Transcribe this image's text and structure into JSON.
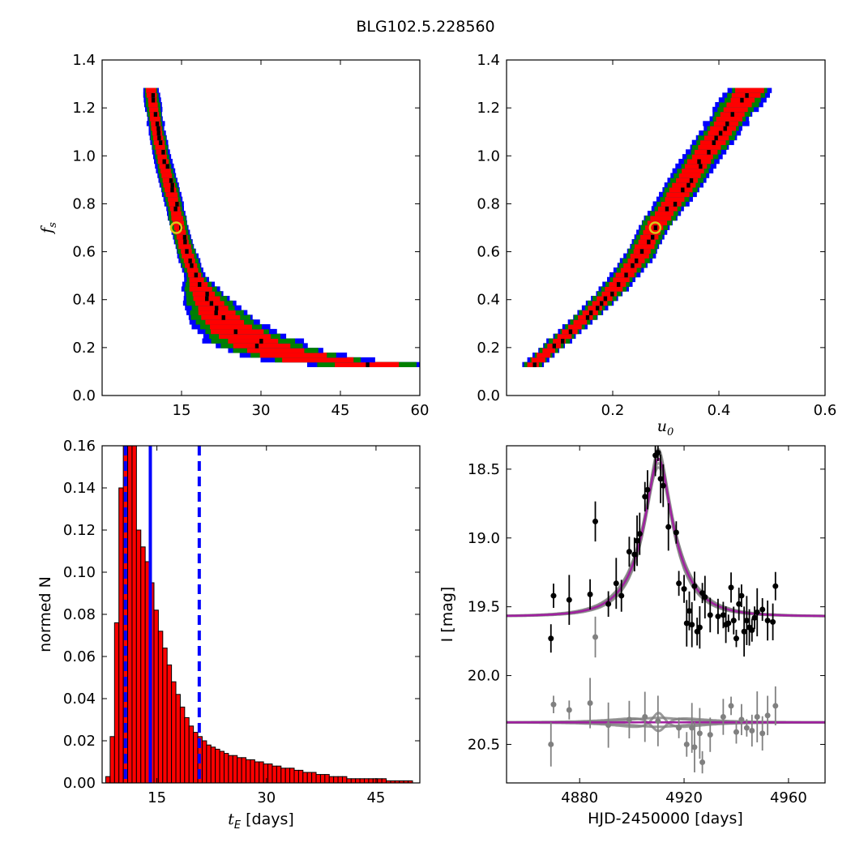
{
  "figure_title": "BLG102.5.228560",
  "colors": {
    "blue": "#0000ff",
    "green": "#008000",
    "red": "#ff0000",
    "black": "#000000",
    "yellow": "#d8c81a",
    "gray": "#808080",
    "magenta": "#a020a0"
  },
  "chart_data": [
    {
      "id": "fs-vs-tE",
      "type": "heatmap",
      "xlabel": "",
      "ylabel": "f_s",
      "xlim": [
        0,
        60
      ],
      "ylim": [
        0.0,
        1.4
      ],
      "xticks": [
        "15",
        "30",
        "45",
        "60"
      ],
      "yticks": [
        "0.0",
        "0.2",
        "0.4",
        "0.6",
        "0.8",
        "1.0",
        "1.2",
        "1.4"
      ],
      "levels": [
        "blue",
        "green",
        "red",
        "black"
      ],
      "ridge": [
        [
          9.2,
          1.27
        ],
        [
          10.3,
          1.1
        ],
        [
          11.2,
          1.0
        ],
        [
          12.3,
          0.9
        ],
        [
          13.5,
          0.8
        ],
        [
          14.5,
          0.7
        ],
        [
          15.5,
          0.62
        ],
        [
          17,
          0.52
        ],
        [
          18.5,
          0.44
        ],
        [
          20.5,
          0.37
        ],
        [
          23,
          0.3
        ],
        [
          26,
          0.25
        ],
        [
          30,
          0.2
        ],
        [
          34,
          0.17
        ],
        [
          38,
          0.15
        ],
        [
          42,
          0.135
        ],
        [
          46,
          0.125
        ],
        [
          50,
          0.12
        ]
      ],
      "marker": {
        "x": 14,
        "y": 0.7
      }
    },
    {
      "id": "fs-vs-u0",
      "type": "heatmap",
      "xlabel": "u_0",
      "ylabel": "",
      "xlim": [
        0.0,
        0.6
      ],
      "ylim": [
        0.0,
        1.4
      ],
      "xticks": [
        "0.2",
        "0.4",
        "0.6"
      ],
      "yticks": [
        "0.0",
        "0.2",
        "0.4",
        "0.6",
        "0.8",
        "1.0",
        "1.2",
        "1.4"
      ],
      "levels": [
        "blue",
        "green",
        "red",
        "black"
      ],
      "ridge": [
        [
          0.05,
          0.12
        ],
        [
          0.1,
          0.22
        ],
        [
          0.15,
          0.32
        ],
        [
          0.2,
          0.43
        ],
        [
          0.25,
          0.57
        ],
        [
          0.28,
          0.7
        ],
        [
          0.32,
          0.82
        ],
        [
          0.36,
          0.96
        ],
        [
          0.4,
          1.08
        ],
        [
          0.43,
          1.18
        ],
        [
          0.46,
          1.27
        ]
      ],
      "marker": {
        "x": 0.28,
        "y": 0.7
      }
    },
    {
      "id": "tE-histogram",
      "type": "bar",
      "xlabel": "t_E [days]",
      "ylabel": "normed N",
      "xlim": [
        7.5,
        51
      ],
      "ylim": [
        0.0,
        0.16
      ],
      "xticks": [
        "15",
        "30",
        "45"
      ],
      "yticks": [
        "0.00",
        "0.02",
        "0.04",
        "0.06",
        "0.08",
        "0.10",
        "0.12",
        "0.14",
        "0.16"
      ],
      "bin_start": 8,
      "bin_width": 0.6,
      "values": [
        0.003,
        0.022,
        0.076,
        0.14,
        0.16,
        0.16,
        0.16,
        0.12,
        0.112,
        0.105,
        0.095,
        0.082,
        0.072,
        0.064,
        0.056,
        0.048,
        0.042,
        0.036,
        0.031,
        0.027,
        0.024,
        0.022,
        0.02,
        0.018,
        0.017,
        0.016,
        0.015,
        0.014,
        0.013,
        0.013,
        0.012,
        0.012,
        0.011,
        0.011,
        0.01,
        0.01,
        0.009,
        0.009,
        0.008,
        0.008,
        0.007,
        0.007,
        0.007,
        0.006,
        0.006,
        0.005,
        0.005,
        0.005,
        0.004,
        0.004,
        0.004,
        0.003,
        0.003,
        0.003,
        0.003,
        0.002,
        0.002,
        0.002,
        0.002,
        0.002,
        0.002,
        0.002,
        0.002,
        0.002,
        0.001,
        0.001,
        0.001,
        0.001,
        0.001,
        0.001
      ],
      "vlines": [
        {
          "x": 14.1,
          "style": "solid"
        },
        {
          "x": 10.7,
          "style": "dashed"
        },
        {
          "x": 20.8,
          "style": "dashed"
        }
      ]
    },
    {
      "id": "light-curve",
      "type": "scatter",
      "xlabel": "HJD-2450000 [days]",
      "ylabel": "I [mag]",
      "xlim": [
        4852,
        4974
      ],
      "ylim": [
        20.78,
        18.33
      ],
      "xticks": [
        "4880",
        "4920",
        "4960"
      ],
      "yticks": [
        "18.5",
        "19.0",
        "19.5",
        "20.0",
        "20.5"
      ],
      "model": {
        "t0": 4910.2,
        "tE": 14,
        "u0": 0.28,
        "fs": 0.7,
        "baseline": 19.57
      },
      "residual_offset": 20.34,
      "series": [
        {
          "values": [
            [
              4869,
              19.73
            ],
            [
              4870,
              19.42
            ],
            [
              4876,
              19.45
            ],
            [
              4884,
              19.41
            ],
            [
              4886,
              18.88
            ],
            [
              4891,
              19.48
            ],
            [
              4894,
              19.33
            ],
            [
              4896,
              19.42
            ],
            [
              4899,
              19.1
            ],
            [
              4901,
              19.12
            ],
            [
              4902,
              19.02
            ],
            [
              4903,
              18.97
            ],
            [
              4905,
              18.7
            ],
            [
              4906,
              18.65
            ],
            [
              4909,
              18.4
            ],
            [
              4910,
              18.38
            ],
            [
              4911,
              18.57
            ],
            [
              4912,
              18.62
            ],
            [
              4914,
              18.92
            ],
            [
              4917,
              18.96
            ],
            [
              4918,
              19.33
            ],
            [
              4920,
              19.37
            ],
            [
              4921,
              19.62
            ],
            [
              4922,
              19.53
            ],
            [
              4923,
              19.63
            ],
            [
              4924,
              19.35
            ],
            [
              4925,
              19.68
            ],
            [
              4926,
              19.65
            ],
            [
              4927,
              19.4
            ],
            [
              4928,
              19.43
            ],
            [
              4930,
              19.56
            ],
            [
              4933,
              19.57
            ],
            [
              4935,
              19.56
            ],
            [
              4936,
              19.63
            ],
            [
              4937,
              19.62
            ],
            [
              4938,
              19.36
            ],
            [
              4939,
              19.6
            ],
            [
              4940,
              19.73
            ],
            [
              4941,
              19.48
            ],
            [
              4942,
              19.42
            ],
            [
              4943,
              19.68
            ],
            [
              4944,
              19.6
            ],
            [
              4945,
              19.65
            ],
            [
              4946,
              19.67
            ],
            [
              4947,
              19.58
            ],
            [
              4948,
              19.54
            ],
            [
              4950,
              19.52
            ],
            [
              4952,
              19.6
            ],
            [
              4954,
              19.61
            ],
            [
              4955,
              19.35
            ]
          ]
        },
        {
          "values": [
            [
              4869,
              20.5
            ],
            [
              4870,
              20.21
            ],
            [
              4876,
              20.25
            ],
            [
              4884,
              20.2
            ],
            [
              4886,
              19.72
            ],
            [
              4891,
              20.36
            ],
            [
              4899,
              20.32
            ],
            [
              4905,
              20.3
            ],
            [
              4910,
              20.33
            ],
            [
              4918,
              20.38
            ],
            [
              4921,
              20.5
            ],
            [
              4923,
              20.38
            ],
            [
              4924,
              20.52
            ],
            [
              4926,
              20.42
            ],
            [
              4927,
              20.63
            ],
            [
              4930,
              20.43
            ],
            [
              4935,
              20.3
            ],
            [
              4938,
              20.22
            ],
            [
              4940,
              20.41
            ],
            [
              4942,
              20.32
            ],
            [
              4944,
              20.38
            ],
            [
              4946,
              20.4
            ],
            [
              4948,
              20.3
            ],
            [
              4950,
              20.42
            ],
            [
              4952,
              20.29
            ],
            [
              4955,
              20.22
            ]
          ]
        }
      ]
    }
  ]
}
